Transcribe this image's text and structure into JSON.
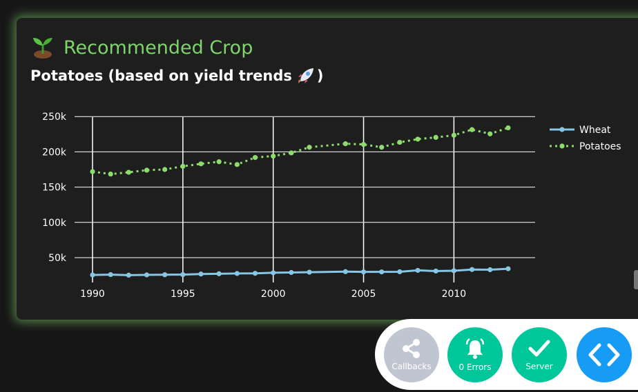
{
  "card": {
    "title": "Recommended Crop",
    "subtitle": "Potatoes (based on yield trends",
    "subtitle_close": ")",
    "title_icon": "seedling-icon",
    "subtitle_icon": "rocket-icon"
  },
  "chart_data": {
    "type": "line",
    "title": "",
    "xlabel": "",
    "ylabel": "",
    "xlim": [
      1990,
      2013
    ],
    "ylim": [
      25000,
      255000
    ],
    "x_ticks": [
      1990,
      1995,
      2000,
      2005,
      2010
    ],
    "x_tick_labels": [
      "1990",
      "1995",
      "2000",
      "2005",
      "2010"
    ],
    "y_ticks": [
      50000,
      100000,
      150000,
      200000,
      250000
    ],
    "y_tick_labels": [
      "50k",
      "100k",
      "150k",
      "200k",
      "250k"
    ],
    "legend_position": "top-right",
    "grid": true,
    "series": [
      {
        "name": "Wheat",
        "style": "solid",
        "color": "#87c7e6",
        "x": [
          1990,
          1991,
          1992,
          1993,
          1994,
          1995,
          1996,
          1997,
          1998,
          1999,
          2000,
          2001,
          2002,
          2004,
          2005,
          2006,
          2007,
          2008,
          2009,
          2010,
          2011,
          2012,
          2013
        ],
        "values": [
          25500,
          26000,
          25200,
          25600,
          25800,
          26000,
          26800,
          27200,
          27600,
          27800,
          28600,
          29000,
          29400,
          30200,
          29800,
          29800,
          30000,
          32000,
          31000,
          31500,
          33200,
          32900,
          34300
        ]
      },
      {
        "name": "Potatoes",
        "style": "dotted",
        "color": "#8fdc6e",
        "x": [
          1990,
          1991,
          1992,
          1993,
          1994,
          1995,
          1996,
          1997,
          1998,
          1999,
          2000,
          2001,
          2002,
          2004,
          2005,
          2006,
          2007,
          2008,
          2009,
          2010,
          2011,
          2012,
          2013
        ],
        "values": [
          172000,
          168500,
          171000,
          174000,
          175000,
          179500,
          183000,
          186000,
          182000,
          192000,
          194000,
          198500,
          206500,
          211500,
          210500,
          206500,
          213500,
          218000,
          220500,
          223500,
          231500,
          225500,
          234000
        ]
      }
    ]
  },
  "dock": {
    "callbacks_label": "Callbacks",
    "errors_label": "0 Errors",
    "server_label": "Server",
    "callbacks_color": "#c0c5d2",
    "errors_color": "#00c79a",
    "server_color": "#00c79a",
    "code_color": "#169cf5"
  }
}
